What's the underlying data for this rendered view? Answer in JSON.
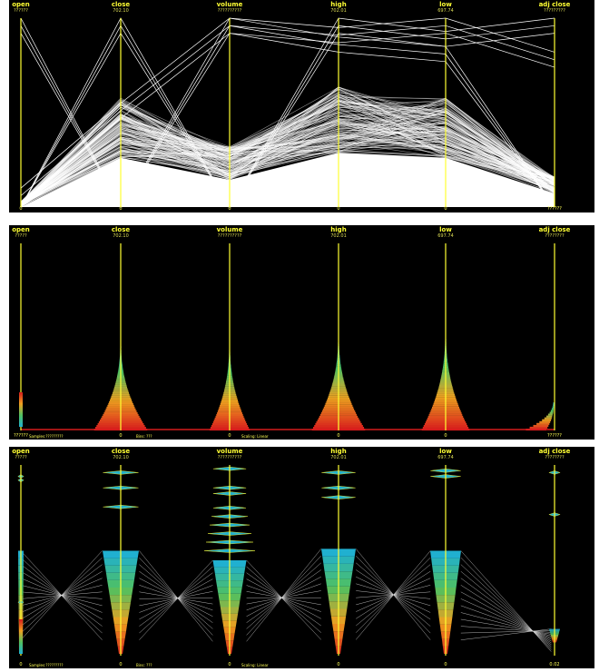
{
  "axes": [
    "open",
    "close",
    "volume",
    "high",
    "low",
    "adj close"
  ],
  "panels": [
    {
      "view": "polylines",
      "maxima": [
        "??????",
        "702.10",
        "??????????",
        "702.01",
        "697.74",
        "?????????"
      ],
      "minima": [
        "0",
        "0",
        "0",
        "0",
        "0",
        "??????"
      ],
      "status": {
        "samples": "",
        "bins": "",
        "scaling": ""
      }
    },
    {
      "view": "histogram-density",
      "maxima": [
        "?????",
        "702.10",
        "??????????",
        "702.01",
        "697.74",
        "????????"
      ],
      "minima": [
        "??????",
        "0",
        "0",
        "0",
        "0",
        "??????"
      ],
      "status": {
        "samples": "Samples:?????????",
        "bins": "Bins: ???",
        "scaling": "Scaling: Linear"
      }
    },
    {
      "view": "clustered-density",
      "maxima": [
        "?????",
        "702.10",
        "??????????",
        "702.01",
        "697.74",
        "????????"
      ],
      "minima": [
        "0",
        "0",
        "0",
        "0",
        "0",
        "0.02"
      ],
      "status": {
        "samples": "Samples:?????????",
        "bins": "Bins: ???",
        "scaling": "Scaling: Linear"
      }
    }
  ],
  "colors": {
    "axis": "#ffff33",
    "lines": "#ffffff",
    "density_low": "#d61c1c",
    "density_mid": "#f0a020",
    "density_high": "#20b0d0",
    "background": "#000000"
  },
  "chart_data": [
    {
      "type": "parallel-coordinates",
      "dimensions": [
        "open",
        "close",
        "volume",
        "high",
        "low",
        "adj close"
      ],
      "summary_profile": [
        0.0,
        0.58,
        0.32,
        0.64,
        0.58,
        0.16
      ],
      "outlier_profiles": [
        [
          1.0,
          0.0,
          1.0,
          0.9,
          0.85,
          0.0
        ],
        [
          0.0,
          1.0,
          0.0,
          1.0,
          0.93,
          1.0
        ],
        [
          0.1,
          0.55,
          1.0,
          0.95,
          1.0,
          0.82
        ]
      ]
    },
    {
      "type": "parallel-coordinates-histogram",
      "dimensions": [
        "open",
        "close",
        "volume",
        "high",
        "low",
        "adj close"
      ],
      "peak_height": [
        0.02,
        0.46,
        0.45,
        0.49,
        0.51,
        0.15
      ],
      "spread": [
        0.0,
        0.48,
        0.36,
        0.48,
        0.43,
        0.18
      ]
    },
    {
      "type": "parallel-coordinates-clustered",
      "dimensions": [
        "open",
        "close",
        "volume",
        "high",
        "low",
        "adj close"
      ],
      "main_cluster": {
        "top": [
          0.55,
          0.55,
          0.5,
          0.56,
          0.55,
          0.14
        ],
        "bottom": [
          0.0,
          0.0,
          0.0,
          0.0,
          0.0,
          0.06
        ],
        "width_top": [
          0.0,
          0.34,
          0.31,
          0.32,
          0.28,
          0.06
        ]
      },
      "outlier_clusters": [
        [
          0.92,
          0.96,
          0.98,
          0.96,
          0.97,
          0.96
        ],
        [
          0.94,
          0.88,
          0.88,
          0.88,
          0.94,
          0.0
        ],
        [
          0.28,
          0.78,
          0.85,
          0.83,
          0.0,
          0.74
        ]
      ]
    }
  ]
}
